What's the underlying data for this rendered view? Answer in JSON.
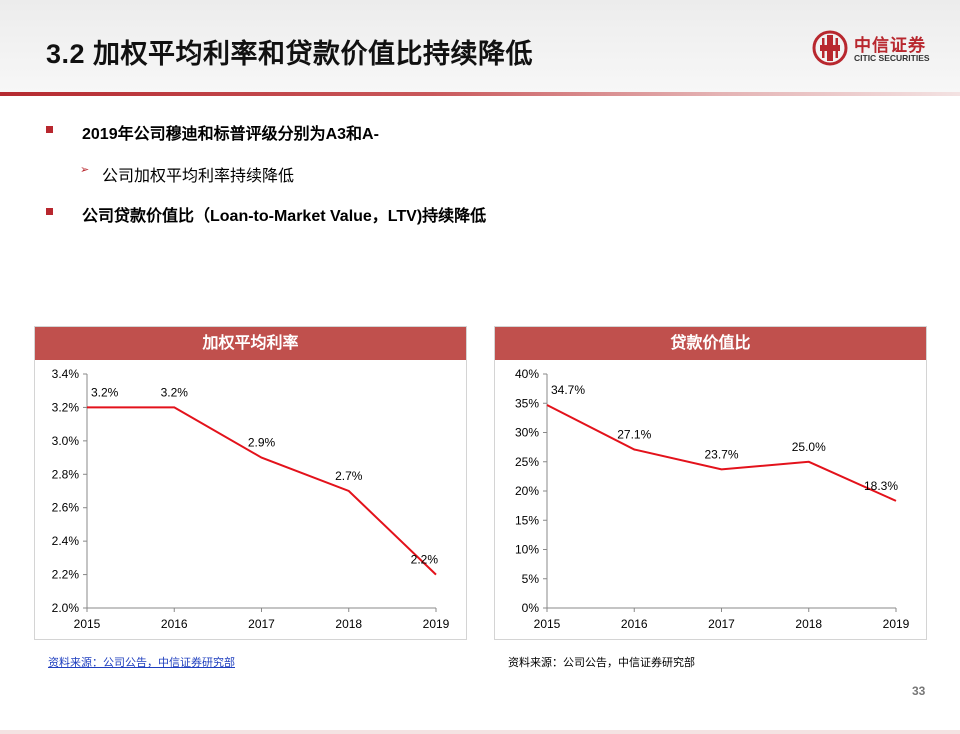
{
  "title": "3.2 加权平均利率和贷款价值比持续降低",
  "logo": {
    "cn": "中信证券",
    "en": "CITIC SECURITIES"
  },
  "bullets": [
    {
      "text": "2019年公司穆迪和标普评级分别为A3和A-"
    },
    {
      "text": "公司加权平均利率持续降低"
    },
    {
      "text": "公司贷款价值比（Loan-to-Market  Value，LTV)持续降低"
    }
  ],
  "colors": {
    "accent": "#c0504d",
    "line": "#e3121b",
    "brand": "#b8272e"
  },
  "chart_data": [
    {
      "type": "line",
      "title": "加权平均利率",
      "categories": [
        "2015",
        "2016",
        "2017",
        "2018",
        "2019"
      ],
      "values": [
        3.2,
        3.2,
        2.9,
        2.7,
        2.2
      ],
      "data_labels": [
        "3.2%",
        "3.2%",
        "2.9%",
        "2.7%",
        "2.2%"
      ],
      "ylim": [
        2.0,
        3.4
      ],
      "yticks": [
        2.0,
        2.2,
        2.4,
        2.6,
        2.8,
        3.0,
        3.2,
        3.4
      ],
      "ytick_labels": [
        "2.0%",
        "2.2%",
        "2.4%",
        "2.6%",
        "2.8%",
        "3.0%",
        "3.2%",
        "3.4%"
      ],
      "grid": false,
      "legend": "none"
    },
    {
      "type": "line",
      "title": "贷款价值比",
      "categories": [
        "2015",
        "2016",
        "2017",
        "2018",
        "2019"
      ],
      "values": [
        34.7,
        27.1,
        23.7,
        25.0,
        18.3
      ],
      "data_labels": [
        "34.7%",
        "27.1%",
        "23.7%",
        "25.0%",
        "18.3%"
      ],
      "ylim": [
        0,
        40
      ],
      "yticks": [
        0,
        5,
        10,
        15,
        20,
        25,
        30,
        35,
        40
      ],
      "ytick_labels": [
        "0%",
        "5%",
        "10%",
        "15%",
        "20%",
        "25%",
        "30%",
        "35%",
        "40%"
      ],
      "grid": false,
      "legend": "none"
    }
  ],
  "sources": [
    "资料来源：公司公告，中信证券研究部",
    "资料来源：公司公告，中信证券研究部"
  ],
  "page_number": "33"
}
